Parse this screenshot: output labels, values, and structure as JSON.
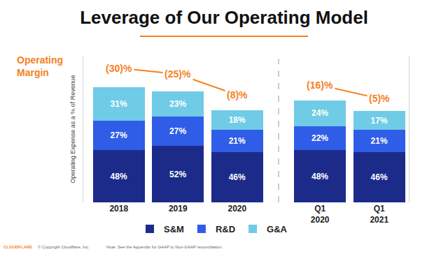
{
  "chart_data": {
    "type": "bar",
    "title": "Leverage of Our Operating Model",
    "y_label": "Operating Expense as a % of Revenue",
    "categories": [
      "2018",
      "2019",
      "2020",
      "Q1 2020",
      "Q1 2021"
    ],
    "series": [
      {
        "name": "S&M",
        "color": "#1c2b8a",
        "values": [
          48,
          52,
          46,
          48,
          46
        ],
        "value_labels": [
          "48%",
          "52%",
          "46%",
          "48%",
          "46%"
        ]
      },
      {
        "name": "R&D",
        "color": "#2f5de8",
        "values": [
          27,
          27,
          21,
          22,
          21
        ],
        "value_labels": [
          "27%",
          "27%",
          "21%",
          "22%",
          "21%"
        ]
      },
      {
        "name": "G&A",
        "color": "#6fcbe6",
        "values": [
          31,
          23,
          18,
          24,
          17
        ],
        "value_labels": [
          "31%",
          "23%",
          "18%",
          "24%",
          "17%"
        ]
      },
      {
        "name": "Operating Margin",
        "type": "line",
        "axis": "y2",
        "color": "#f4811f",
        "marker": "none",
        "line_style": "solid",
        "values": [
          -30,
          -25,
          -8,
          -16,
          -5
        ],
        "value_labels": [
          "(30)%",
          "(25)%",
          "(8)%",
          "(16)%",
          "(5)%"
        ]
      }
    ],
    "stacked": true,
    "data_labels": true,
    "ylim": [
      0,
      135
    ],
    "yticks": [],
    "y2lim": [
      80,
      -40
    ],
    "y2ticks": [],
    "tick_labels": "x",
    "grid": false,
    "legend": "bottom",
    "logo": "CLOUDFLARE",
    "footnotes": [
      "© Copyright Cloudflare, Inc.",
      "Note: See the Appendix for GAAP to Non-GAAP reconciliation."
    ]
  }
}
